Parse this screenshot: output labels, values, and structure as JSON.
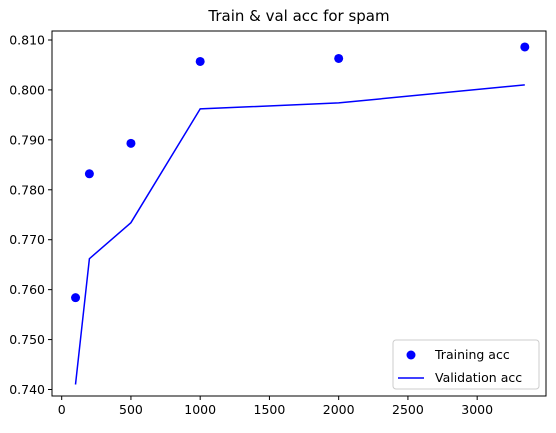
{
  "chart_data": {
    "type": "line",
    "title": "Train & val acc for spam",
    "xlabel": "",
    "ylabel": "",
    "xlim": [
      -70,
      3497
    ],
    "ylim": [
      0.7387,
      0.8118
    ],
    "grid": false,
    "legend_position": "lower-right",
    "x_ticks": [
      0,
      500,
      1000,
      1500,
      2000,
      2500,
      3000
    ],
    "y_ticks": [
      0.74,
      0.75,
      0.76,
      0.77,
      0.78,
      0.79,
      0.8,
      0.81
    ],
    "x_tick_labels": [
      "0",
      "500",
      "1000",
      "1500",
      "2000",
      "2500",
      "3000"
    ],
    "y_tick_labels": [
      "0.740",
      "0.750",
      "0.760",
      "0.770",
      "0.780",
      "0.790",
      "0.800",
      "0.810"
    ],
    "series": [
      {
        "name": "Training acc",
        "style": "scatter",
        "color": "#0000ff",
        "x": [
          100,
          200,
          500,
          1000,
          2000,
          3344
        ],
        "y": [
          0.7584,
          0.7832,
          0.7893,
          0.8057,
          0.8063,
          0.8086
        ]
      },
      {
        "name": "Validation acc",
        "style": "line",
        "color": "#0000ff",
        "x": [
          100,
          200,
          500,
          1000,
          2000,
          3344
        ],
        "y": [
          0.741,
          0.7662,
          0.7734,
          0.7962,
          0.7974,
          0.801
        ]
      }
    ]
  }
}
